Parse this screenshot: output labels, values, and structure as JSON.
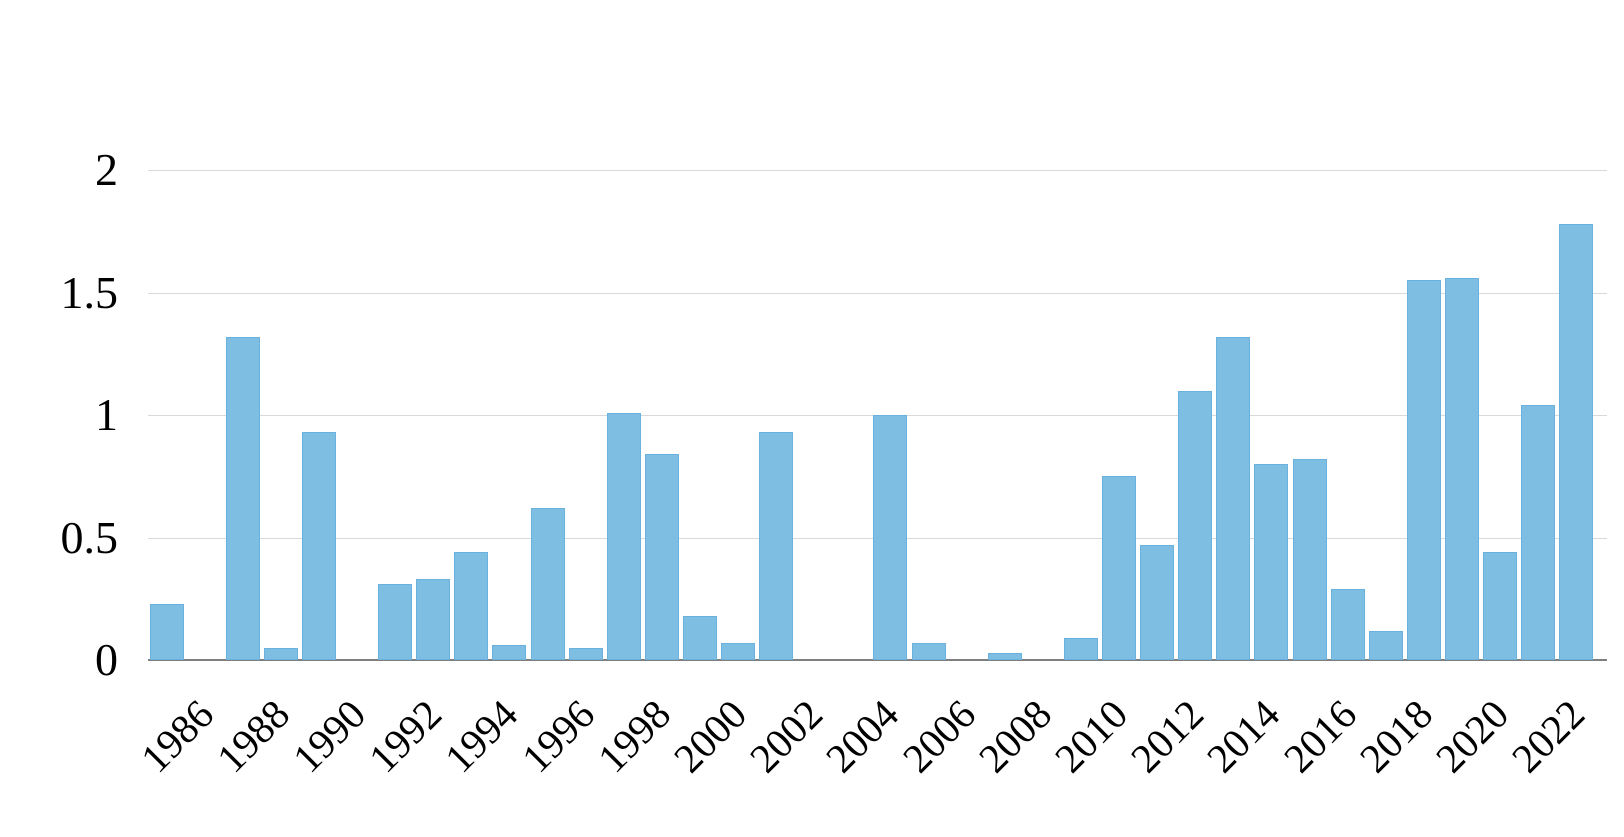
{
  "chart_data": {
    "type": "bar",
    "title": "",
    "xlabel": "",
    "ylabel": "",
    "x": [
      1986,
      1987,
      1988,
      1989,
      1990,
      1991,
      1992,
      1993,
      1994,
      1995,
      1996,
      1997,
      1998,
      1999,
      2000,
      2001,
      2002,
      2003,
      2004,
      2005,
      2006,
      2007,
      2008,
      2009,
      2010,
      2011,
      2012,
      2013,
      2014,
      2015,
      2016,
      2017,
      2018,
      2019,
      2020,
      2021,
      2022,
      2023
    ],
    "values": [
      0.23,
      0,
      1.32,
      0.05,
      0.93,
      0,
      0.31,
      0.33,
      0.44,
      0.06,
      0.62,
      0.05,
      1.01,
      0.84,
      0.18,
      0.07,
      0.93,
      0,
      0,
      1.0,
      0.07,
      0,
      0.03,
      0,
      0.09,
      0.75,
      0.47,
      1.1,
      1.32,
      0.8,
      0.82,
      0.29,
      0.12,
      1.55,
      1.56,
      0.44,
      1.04,
      1.78
    ],
    "x_tick_labels": [
      "1986",
      "1988",
      "1990",
      "1992",
      "1994",
      "1996",
      "1998",
      "2000",
      "2002",
      "2004",
      "2006",
      "2008",
      "2010",
      "2012",
      "2014",
      "2016",
      "2018",
      "2020",
      "2022"
    ],
    "y_ticks": [
      0,
      0.5,
      1,
      1.5,
      2
    ],
    "y_tick_labels": [
      "0",
      "0.5",
      "1",
      "1.5",
      "2"
    ],
    "ylim": [
      0,
      2
    ],
    "grid": "horizontal",
    "legend": "none",
    "bar_color": "#7FBEE3",
    "bar_border_color": "#6BB1DD",
    "gridline_color": "#D9D9D9",
    "axis_line_color": "#7F7F7F",
    "text_color": "#000000",
    "background": "#FFFFFF"
  }
}
